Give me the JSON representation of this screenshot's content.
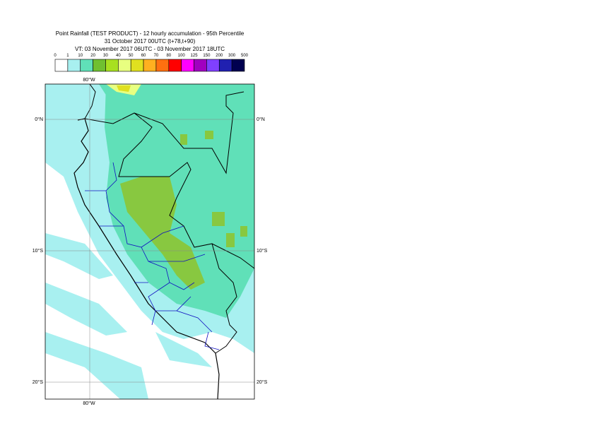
{
  "header": {
    "title": "Point Rainfall (TEST PRODUCT) - 12 hourly accumulation - 95th Percentile",
    "date": "31 October 2017 00UTC (t+78,t+90)",
    "validity": "VT: 03 November 2017 06UTC - 03 November 2017 18UTC"
  },
  "legend": {
    "ticks": [
      "0",
      "1",
      "10",
      "20",
      "30",
      "40",
      "50",
      "60",
      "70",
      "80",
      "100",
      "125",
      "150",
      "200",
      "300",
      "500"
    ],
    "colors": [
      "#ffffff",
      "#a8f0f0",
      "#60e0b8",
      "#70c030",
      "#a8e020",
      "#e8ff80",
      "#e0e020",
      "#ffb020",
      "#ff7010",
      "#ff0000",
      "#ff00ff",
      "#a000c0",
      "#8040ff",
      "#2020b0",
      "#000050"
    ]
  },
  "map": {
    "lat_labels": [
      "0°N",
      "10°S",
      "20°S"
    ],
    "lon_labels": [
      "80°W"
    ]
  }
}
